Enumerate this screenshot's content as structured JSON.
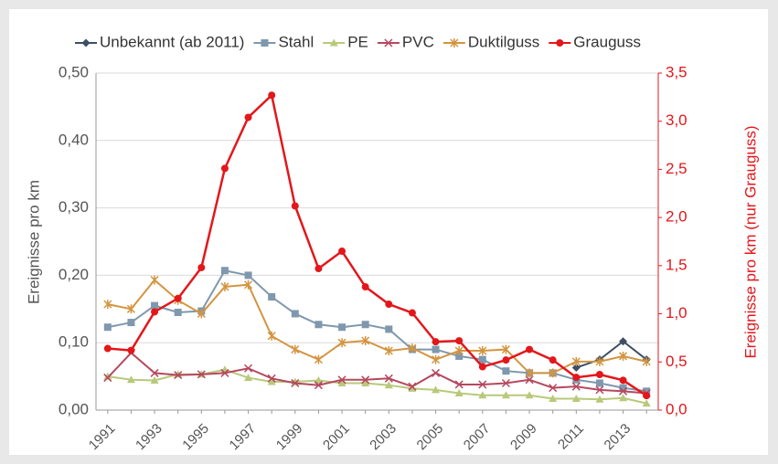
{
  "chart_data": {
    "type": "line",
    "categories": [
      "1991",
      null,
      "1993",
      null,
      "1995",
      null,
      "1997",
      null,
      "1999",
      null,
      "2001",
      null,
      "2003",
      null,
      "2005",
      null,
      "2007",
      null,
      "2009",
      null,
      "2011",
      null,
      "2013",
      null
    ],
    "ylabel": "Ereignisse pro km",
    "y2label": "Ereignisse pro km (nur Grauguss)",
    "ylim": [
      0,
      0.5
    ],
    "yticks": [
      {
        "value": 0,
        "label": "0,00"
      },
      {
        "value": 0.1,
        "label": "0,10"
      },
      {
        "value": 0.2,
        "label": "0,20"
      },
      {
        "value": 0.3,
        "label": "0,30"
      },
      {
        "value": 0.4,
        "label": "0,40"
      },
      {
        "value": 0.5,
        "label": "0,50"
      }
    ],
    "y2lim": [
      0,
      3.5
    ],
    "y2ticks": [
      {
        "value": 0,
        "label": "0,0"
      },
      {
        "value": 0.5,
        "label": "0,5"
      },
      {
        "value": 1,
        "label": "1,0"
      },
      {
        "value": 1.5,
        "label": "1,5"
      },
      {
        "value": 2,
        "label": "2,0"
      },
      {
        "value": 2.5,
        "label": "2,5"
      },
      {
        "value": 3,
        "label": "3,0"
      },
      {
        "value": 3.5,
        "label": "3,5"
      }
    ],
    "grid": true,
    "legend": "top",
    "series": [
      {
        "name": "Unbekannt (ab 2011)",
        "color": "#3d4f63",
        "marker": "diamond",
        "values": [
          null,
          null,
          null,
          null,
          null,
          null,
          null,
          null,
          null,
          null,
          null,
          null,
          null,
          null,
          null,
          null,
          null,
          null,
          null,
          null,
          0.063,
          0.075,
          0.102,
          0.075
        ]
      },
      {
        "name": "Stahl",
        "color": "#7f98ad",
        "marker": "square",
        "values": [
          0.123,
          0.13,
          0.155,
          0.145,
          0.147,
          0.207,
          0.2,
          0.168,
          0.143,
          0.127,
          0.123,
          0.127,
          0.12,
          0.09,
          0.09,
          0.08,
          0.075,
          0.058,
          0.055,
          0.055,
          0.045,
          0.04,
          0.033,
          0.028
        ]
      },
      {
        "name": "PE",
        "color": "#b8c97a",
        "marker": "triangle",
        "values": [
          0.05,
          0.045,
          0.044,
          0.053,
          0.053,
          0.06,
          0.048,
          0.042,
          0.042,
          0.044,
          0.04,
          0.04,
          0.037,
          0.032,
          0.03,
          0.025,
          0.022,
          0.022,
          0.022,
          0.017,
          0.017,
          0.016,
          0.018,
          0.01
        ]
      },
      {
        "name": "PVC",
        "color": "#b5485f",
        "marker": "x",
        "values": [
          0.048,
          0.085,
          0.055,
          0.052,
          0.053,
          0.055,
          0.062,
          0.047,
          0.04,
          0.037,
          0.045,
          0.045,
          0.047,
          0.035,
          0.055,
          0.038,
          0.038,
          0.04,
          0.045,
          0.033,
          0.035,
          0.03,
          0.028,
          0.025
        ]
      },
      {
        "name": "Duktilguss",
        "color": "#d39541",
        "marker": "asterisk",
        "values": [
          0.157,
          0.15,
          0.193,
          0.163,
          0.143,
          0.183,
          0.186,
          0.11,
          0.09,
          0.075,
          0.1,
          0.103,
          0.088,
          0.092,
          0.075,
          0.088,
          0.088,
          0.09,
          0.055,
          0.055,
          0.072,
          0.072,
          0.08,
          0.072
        ]
      },
      {
        "name": "Grauguss",
        "color": "#e3171b",
        "marker": "circle",
        "axis": "y2",
        "values": [
          0.64,
          0.62,
          1.02,
          1.16,
          1.48,
          2.51,
          3.04,
          3.27,
          2.12,
          1.47,
          1.65,
          1.28,
          1.1,
          1.01,
          0.71,
          0.72,
          0.45,
          0.52,
          0.63,
          0.52,
          0.34,
          0.37,
          0.31,
          0.15
        ]
      }
    ]
  }
}
